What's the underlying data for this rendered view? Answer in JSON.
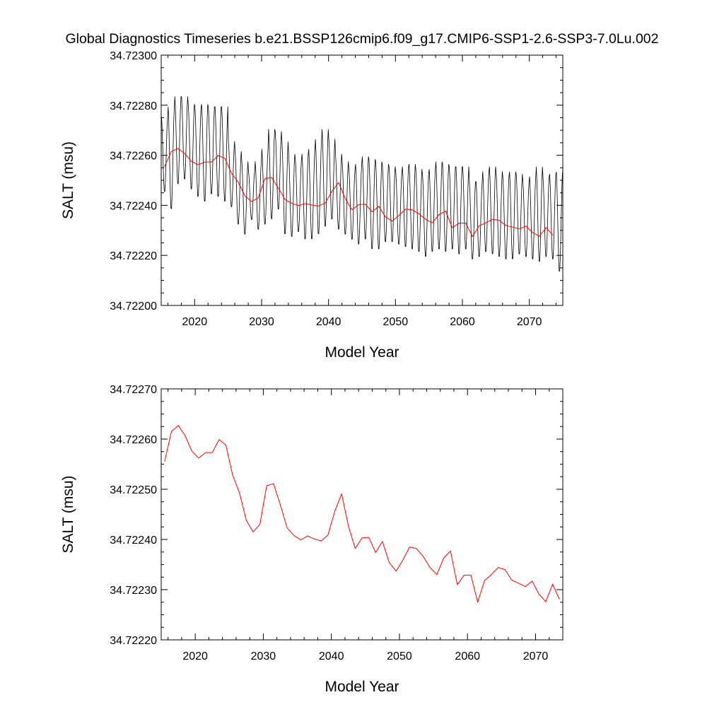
{
  "title": "Global Diagnostics Timeseries b.e21.BSSP126cmip6.f09_g17.CMIP6-SSP1-2.6-SSP3-7.0Lu.002",
  "colors": {
    "monthly": "#000000",
    "annual": "#ff0000",
    "axes": "#000000"
  },
  "chart_data": [
    {
      "type": "line",
      "xlabel": "Model Year",
      "ylabel": "SALT (msu)",
      "xlim": [
        2015,
        2075
      ],
      "ylim": [
        34.722,
        34.723
      ],
      "xticks": [
        "2020",
        "2030",
        "2040",
        "2050",
        "2060",
        "2070"
      ],
      "yticks": [
        "34.72200",
        "34.72220",
        "34.72240",
        "34.72260",
        "34.72280",
        "34.72300"
      ],
      "series": [
        {
          "style": "monthly",
          "seasonal_peak": [
            34.72276,
            34.7228,
            34.72284,
            34.72284,
            34.72281,
            34.7228,
            34.72281,
            34.7228,
            34.7228,
            34.7228,
            34.72266,
            34.72262,
            34.72258,
            34.72254,
            34.72258,
            34.72263,
            34.72271,
            34.7227,
            34.72266,
            34.72261,
            34.72259,
            34.72261,
            34.72263,
            34.72267,
            34.72271,
            34.72267,
            34.72261,
            34.72258,
            34.72255,
            34.72257,
            34.7226,
            34.72259,
            34.72258,
            34.72257,
            34.72256,
            34.72254,
            34.72256,
            34.72257,
            34.72255,
            34.72253,
            34.72255,
            34.72258,
            34.72257,
            34.72256,
            34.72256,
            34.72256,
            34.7225,
            34.7225,
            34.72254,
            34.72256,
            34.72254,
            34.72252,
            34.72254,
            34.72253,
            34.7225,
            34.72252,
            34.72256,
            34.72252,
            34.72253,
            34.72254,
            34.72248
          ],
          "seasonal_trough": [
            34.72245,
            34.72238,
            34.72248,
            34.7225,
            34.72246,
            34.72243,
            34.72241,
            34.72244,
            34.72243,
            34.72241,
            34.72239,
            34.72232,
            34.72228,
            34.72234,
            34.7223,
            34.72232,
            34.72234,
            34.72238,
            34.72228,
            34.72227,
            34.72229,
            34.72226,
            34.72226,
            34.72228,
            34.72231,
            34.72234,
            34.7223,
            34.72228,
            34.72226,
            34.72224,
            34.72226,
            34.72222,
            34.72222,
            34.72225,
            34.72225,
            34.72224,
            34.72223,
            34.72222,
            34.72221,
            34.72219,
            34.72221,
            34.72222,
            34.72221,
            34.72222,
            34.7222,
            34.72222,
            34.72218,
            34.72219,
            34.72221,
            34.7222,
            34.72219,
            34.72218,
            34.72218,
            34.7222,
            34.72219,
            34.72218,
            34.72217,
            34.72219,
            34.72218,
            34.72213,
            34.72221
          ]
        },
        {
          "style": "annual",
          "x": [
            2015.5,
            2016.5,
            2017.5,
            2018.5,
            2019.5,
            2020.5,
            2021.5,
            2022.5,
            2023.5,
            2024.5,
            2025.5,
            2026.5,
            2027.5,
            2028.5,
            2029.5,
            2030.5,
            2031.5,
            2032.5,
            2033.5,
            2034.5,
            2035.5,
            2036.5,
            2037.5,
            2038.5,
            2039.5,
            2040.5,
            2041.5,
            2042.5,
            2043.5,
            2044.5,
            2045.5,
            2046.5,
            2047.5,
            2048.5,
            2049.5,
            2050.5,
            2051.5,
            2052.5,
            2053.5,
            2054.5,
            2055.5,
            2056.5,
            2057.5,
            2058.5,
            2059.5,
            2060.5,
            2061.5,
            2062.5,
            2063.5,
            2064.5,
            2065.5,
            2066.5,
            2067.5,
            2068.5,
            2069.5,
            2070.5,
            2071.5,
            2072.5,
            2073.5
          ],
          "values": [
            34.722555,
            34.722615,
            34.722627,
            34.722607,
            34.722576,
            34.722562,
            34.722573,
            34.722573,
            34.722599,
            34.722588,
            34.722528,
            34.722493,
            34.722438,
            34.722415,
            34.72243,
            34.722507,
            34.722511,
            34.722469,
            34.722423,
            34.722408,
            34.722399,
            34.722407,
            34.722401,
            34.722397,
            34.722409,
            34.722456,
            34.722491,
            34.722427,
            34.722382,
            34.722403,
            34.722404,
            34.722374,
            34.722396,
            34.722354,
            34.722337,
            34.722359,
            34.722385,
            34.722382,
            34.722366,
            34.722344,
            34.72233,
            34.722363,
            34.722377,
            34.72231,
            34.722329,
            34.722329,
            34.722275,
            34.722318,
            34.72233,
            34.722344,
            34.72234,
            34.722319,
            34.722313,
            34.722306,
            34.722317,
            34.722291,
            34.722276,
            34.722311,
            34.722281
          ]
        }
      ]
    },
    {
      "type": "line",
      "xlabel": "Model Year",
      "ylabel": "SALT (msu)",
      "xlim": [
        2015,
        2074
      ],
      "ylim": [
        34.7222,
        34.7227
      ],
      "xticks": [
        "2020",
        "2030",
        "2040",
        "2050",
        "2060",
        "2070"
      ],
      "yticks": [
        "34.72220",
        "34.72230",
        "34.72240",
        "34.72250",
        "34.72260",
        "34.72270"
      ],
      "series": [
        {
          "style": "annual",
          "x": [
            2015.5,
            2016.5,
            2017.5,
            2018.5,
            2019.5,
            2020.5,
            2021.5,
            2022.5,
            2023.5,
            2024.5,
            2025.5,
            2026.5,
            2027.5,
            2028.5,
            2029.5,
            2030.5,
            2031.5,
            2032.5,
            2033.5,
            2034.5,
            2035.5,
            2036.5,
            2037.5,
            2038.5,
            2039.5,
            2040.5,
            2041.5,
            2042.5,
            2043.5,
            2044.5,
            2045.5,
            2046.5,
            2047.5,
            2048.5,
            2049.5,
            2050.5,
            2051.5,
            2052.5,
            2053.5,
            2054.5,
            2055.5,
            2056.5,
            2057.5,
            2058.5,
            2059.5,
            2060.5,
            2061.5,
            2062.5,
            2063.5,
            2064.5,
            2065.5,
            2066.5,
            2067.5,
            2068.5,
            2069.5,
            2070.5,
            2071.5,
            2072.5,
            2073.5
          ],
          "values": [
            34.722555,
            34.722615,
            34.722627,
            34.722607,
            34.722576,
            34.722562,
            34.722573,
            34.722573,
            34.722599,
            34.722588,
            34.722528,
            34.722493,
            34.722438,
            34.722415,
            34.72243,
            34.722507,
            34.722511,
            34.722469,
            34.722423,
            34.722408,
            34.722399,
            34.722407,
            34.722401,
            34.722397,
            34.722409,
            34.722456,
            34.722491,
            34.722427,
            34.722382,
            34.722403,
            34.722404,
            34.722374,
            34.722396,
            34.722354,
            34.722337,
            34.722359,
            34.722385,
            34.722382,
            34.722366,
            34.722344,
            34.72233,
            34.722363,
            34.722377,
            34.72231,
            34.722329,
            34.722329,
            34.722275,
            34.722318,
            34.72233,
            34.722344,
            34.72234,
            34.722319,
            34.722313,
            34.722306,
            34.722317,
            34.722291,
            34.722276,
            34.722311,
            34.722281
          ]
        }
      ]
    }
  ]
}
